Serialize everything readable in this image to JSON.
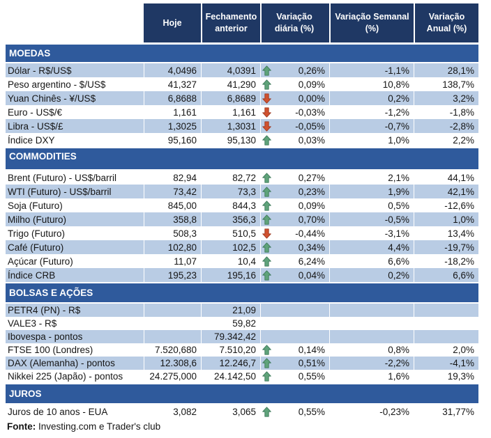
{
  "colors": {
    "header_bg": "#1f3864",
    "section_bg": "#2f5a9c",
    "row_shade": "#b9cce4",
    "arrow_up_fill": "#5fa37a",
    "arrow_up_outline": "#3f7a5b",
    "arrow_down_fill": "#d0512f",
    "arrow_down_outline": "#9e3a22"
  },
  "table": {
    "columns": [
      "Hoje",
      "Fechamento anterior",
      "Variação diária (%)",
      "Variação Semanal (%)",
      "Variação Anual (%)"
    ],
    "sections": [
      {
        "title": "MOEDAS",
        "rows": [
          {
            "label": "Dólar - R$/US$",
            "hoje": "4,0496",
            "fechamento": "4,0391",
            "arrow": "up",
            "diaria": "0,26%",
            "semanal": "-1,1%",
            "anual": "28,1%",
            "shaded": true
          },
          {
            "label": "Peso argentino - $/US$",
            "hoje": "41,327",
            "fechamento": "41,290",
            "arrow": "up",
            "diaria": "0,09%",
            "semanal": "10,8%",
            "anual": "138,7%",
            "shaded": false
          },
          {
            "label": "Yuan Chinês - ¥/US$",
            "hoje": "6,8688",
            "fechamento": "6,8689",
            "arrow": "down",
            "diaria": "0,00%",
            "semanal": "0,2%",
            "anual": "3,2%",
            "shaded": true
          },
          {
            "label": "Euro - US$/€",
            "hoje": "1,161",
            "fechamento": "1,161",
            "arrow": "down",
            "diaria": "-0,03%",
            "semanal": "-1,2%",
            "anual": "-1,8%",
            "shaded": false
          },
          {
            "label": "Libra - US$/£",
            "hoje": "1,3025",
            "fechamento": "1,3031",
            "arrow": "down",
            "diaria": "-0,05%",
            "semanal": "-0,7%",
            "anual": "-2,8%",
            "shaded": true
          },
          {
            "label": "Índice DXY",
            "hoje": "95,160",
            "fechamento": "95,130",
            "arrow": "up",
            "diaria": "0,03%",
            "semanal": "1,0%",
            "anual": "2,2%",
            "shaded": false
          }
        ]
      },
      {
        "title": "COMMODITIES",
        "rows": [
          {
            "label": "Brent (Futuro) - US$/barril",
            "hoje": "82,94",
            "fechamento": "82,72",
            "arrow": "up",
            "diaria": "0,27%",
            "semanal": "2,1%",
            "anual": "44,1%",
            "shaded": false
          },
          {
            "label": "WTI (Futuro) - US$/barril",
            "hoje": "73,42",
            "fechamento": "73,3",
            "arrow": "up",
            "diaria": "0,23%",
            "semanal": "1,9%",
            "anual": "42,1%",
            "shaded": true
          },
          {
            "label": "Soja (Futuro)",
            "hoje": "845,00",
            "fechamento": "844,3",
            "arrow": "up",
            "diaria": "0,09%",
            "semanal": "0,5%",
            "anual": "-12,6%",
            "shaded": false
          },
          {
            "label": "Milho (Futuro)",
            "hoje": "358,8",
            "fechamento": "356,3",
            "arrow": "up",
            "diaria": "0,70%",
            "semanal": "-0,5%",
            "anual": "1,0%",
            "shaded": true
          },
          {
            "label": "Trigo (Futuro)",
            "hoje": "508,3",
            "fechamento": "510,5",
            "arrow": "down",
            "diaria": "-0,44%",
            "semanal": "-3,1%",
            "anual": "13,4%",
            "shaded": false
          },
          {
            "label": "Café (Futuro)",
            "hoje": "102,80",
            "fechamento": "102,5",
            "arrow": "up",
            "diaria": "0,34%",
            "semanal": "4,4%",
            "anual": "-19,7%",
            "shaded": true
          },
          {
            "label": "Açúcar (Futuro)",
            "hoje": "11,07",
            "fechamento": "10,4",
            "arrow": "up",
            "diaria": "6,24%",
            "semanal": "6,6%",
            "anual": "-18,2%",
            "shaded": false
          },
          {
            "label": "Índice CRB",
            "hoje": "195,23",
            "fechamento": "195,16",
            "arrow": "up",
            "diaria": "0,04%",
            "semanal": "0,2%",
            "anual": "6,6%",
            "shaded": true
          }
        ]
      },
      {
        "title": "BOLSAS E AÇÕES",
        "rows": [
          {
            "label": "PETR4 (PN) - R$",
            "hoje": "",
            "fechamento": "21,09",
            "arrow": "none",
            "diaria": "",
            "semanal": "",
            "anual": "",
            "shaded": true
          },
          {
            "label": "VALE3 - R$",
            "hoje": "",
            "fechamento": "59,82",
            "arrow": "none",
            "diaria": "",
            "semanal": "",
            "anual": "",
            "shaded": false
          },
          {
            "label": "Ibovespa - pontos",
            "hoje": "",
            "fechamento": "79.342,42",
            "arrow": "none",
            "diaria": "",
            "semanal": "",
            "anual": "",
            "shaded": true
          },
          {
            "label": "FTSE 100 (Londres)",
            "hoje": "7.520,680",
            "fechamento": "7.510,20",
            "arrow": "up",
            "diaria": "0,14%",
            "semanal": "0,8%",
            "anual": "2,0%",
            "shaded": false
          },
          {
            "label": "DAX (Alemanha) - pontos",
            "hoje": "12.308,6",
            "fechamento": "12.246,7",
            "arrow": "up",
            "diaria": "0,51%",
            "semanal": "-2,2%",
            "anual": "-4,1%",
            "shaded": true
          },
          {
            "label": "Nikkei 225 (Japão) - pontos",
            "hoje": "24.275,000",
            "fechamento": "24.142,50",
            "arrow": "up",
            "diaria": "0,55%",
            "semanal": "1,6%",
            "anual": "19,3%",
            "shaded": false
          }
        ]
      },
      {
        "title": "JUROS",
        "rows": [
          {
            "label": "Juros de 10 anos - EUA",
            "hoje": "3,082",
            "fechamento": "3,065",
            "arrow": "up",
            "diaria": "0,55%",
            "semanal": "-0,23%",
            "anual": "31,77%",
            "shaded": false
          }
        ]
      }
    ]
  },
  "footer": {
    "bold_label": "Fonte:",
    "text": " Investing.com e Trader's club"
  }
}
